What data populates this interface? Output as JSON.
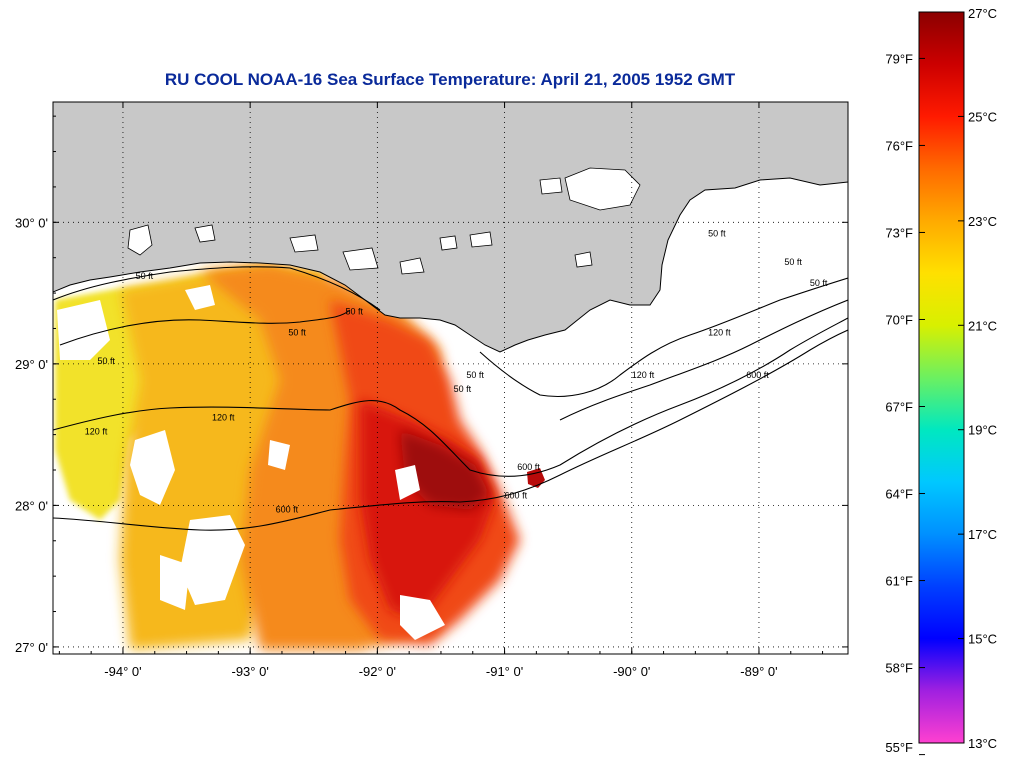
{
  "title": "RU COOL  NOAA-16  Sea Surface Temperature:  April 21, 2005 1952 GMT",
  "map": {
    "lon_range": [
      -94.55,
      -88.3
    ],
    "lat_range": [
      26.95,
      30.85
    ],
    "lon_ticks": [
      {
        "value": -94,
        "label": "-94° 0'"
      },
      {
        "value": -93,
        "label": "-93° 0'"
      },
      {
        "value": -92,
        "label": "-92° 0'"
      },
      {
        "value": -91,
        "label": "-91° 0'"
      },
      {
        "value": -90,
        "label": "-90° 0'"
      },
      {
        "value": -89,
        "label": "-89° 0'"
      }
    ],
    "lat_ticks": [
      {
        "value": 30,
        "label": "30° 0'"
      },
      {
        "value": 29,
        "label": "29° 0'"
      },
      {
        "value": 28,
        "label": "28° 0'"
      },
      {
        "value": 27,
        "label": "27° 0'"
      }
    ],
    "gridlines": true,
    "land_color": "#c8c8c8",
    "contour_labels": [
      {
        "text": "50 ft",
        "lon": -93.9,
        "lat": 29.6
      },
      {
        "text": "50 ft",
        "lon": -92.7,
        "lat": 29.2
      },
      {
        "text": "50 ft",
        "lon": -92.25,
        "lat": 29.35
      },
      {
        "text": "50 ft",
        "lon": -94.2,
        "lat": 29.0
      },
      {
        "text": "120 ft",
        "lon": -93.3,
        "lat": 28.6
      },
      {
        "text": "120 ft",
        "lon": -94.3,
        "lat": 28.5
      },
      {
        "text": "600 ft",
        "lon": -92.8,
        "lat": 27.95
      },
      {
        "text": "600 ft",
        "lon": -91.0,
        "lat": 28.05
      },
      {
        "text": "600 ft",
        "lon": -90.9,
        "lat": 28.25
      },
      {
        "text": "50 ft",
        "lon": -91.4,
        "lat": 28.8
      },
      {
        "text": "50 ft",
        "lon": -91.3,
        "lat": 28.9
      },
      {
        "text": "120 ft",
        "lon": -90.0,
        "lat": 28.9
      },
      {
        "text": "600 ft",
        "lon": -89.1,
        "lat": 28.9
      },
      {
        "text": "120 ft",
        "lon": -89.4,
        "lat": 29.2
      },
      {
        "text": "50 ft",
        "lon": -89.4,
        "lat": 29.9
      },
      {
        "text": "50 ft",
        "lon": -88.8,
        "lat": 29.7
      },
      {
        "text": "50 ft",
        "lon": -88.6,
        "lat": 29.55
      }
    ]
  },
  "colorbar": {
    "celsius_ticks": [
      {
        "value": 27,
        "label": "27°C"
      },
      {
        "value": 25,
        "label": "25°C"
      },
      {
        "value": 23,
        "label": "23°C"
      },
      {
        "value": 21,
        "label": "21°C"
      },
      {
        "value": 19,
        "label": "19°C"
      },
      {
        "value": 17,
        "label": "17°C"
      },
      {
        "value": 15,
        "label": "15°C"
      },
      {
        "value": 13,
        "label": "13°C"
      }
    ],
    "fahrenheit_ticks": [
      {
        "value": 79,
        "label": "79°F"
      },
      {
        "value": 76,
        "label": "76°F"
      },
      {
        "value": 73,
        "label": "73°F"
      },
      {
        "value": 70,
        "label": "70°F"
      },
      {
        "value": 67,
        "label": "67°F"
      },
      {
        "value": 64,
        "label": "64°F"
      },
      {
        "value": 61,
        "label": "61°F"
      },
      {
        "value": 58,
        "label": "58°F"
      },
      {
        "value": 55,
        "label": "55°F"
      }
    ],
    "range_c": [
      13,
      27
    ],
    "stops": [
      {
        "c": 27,
        "color": "#8b0000"
      },
      {
        "c": 26,
        "color": "#cc0000"
      },
      {
        "c": 25,
        "color": "#ff1a00"
      },
      {
        "c": 24,
        "color": "#ff6a00"
      },
      {
        "c": 23,
        "color": "#ffaa00"
      },
      {
        "c": 22,
        "color": "#ffe000"
      },
      {
        "c": 21,
        "color": "#d8f000"
      },
      {
        "c": 20,
        "color": "#6cf060"
      },
      {
        "c": 19,
        "color": "#00e8c0"
      },
      {
        "c": 18,
        "color": "#00c8ff"
      },
      {
        "c": 17,
        "color": "#0090ff"
      },
      {
        "c": 16,
        "color": "#0040ff"
      },
      {
        "c": 15,
        "color": "#0000ff"
      },
      {
        "c": 14,
        "color": "#a020e0"
      },
      {
        "c": 13,
        "color": "#ff40d0"
      }
    ]
  }
}
